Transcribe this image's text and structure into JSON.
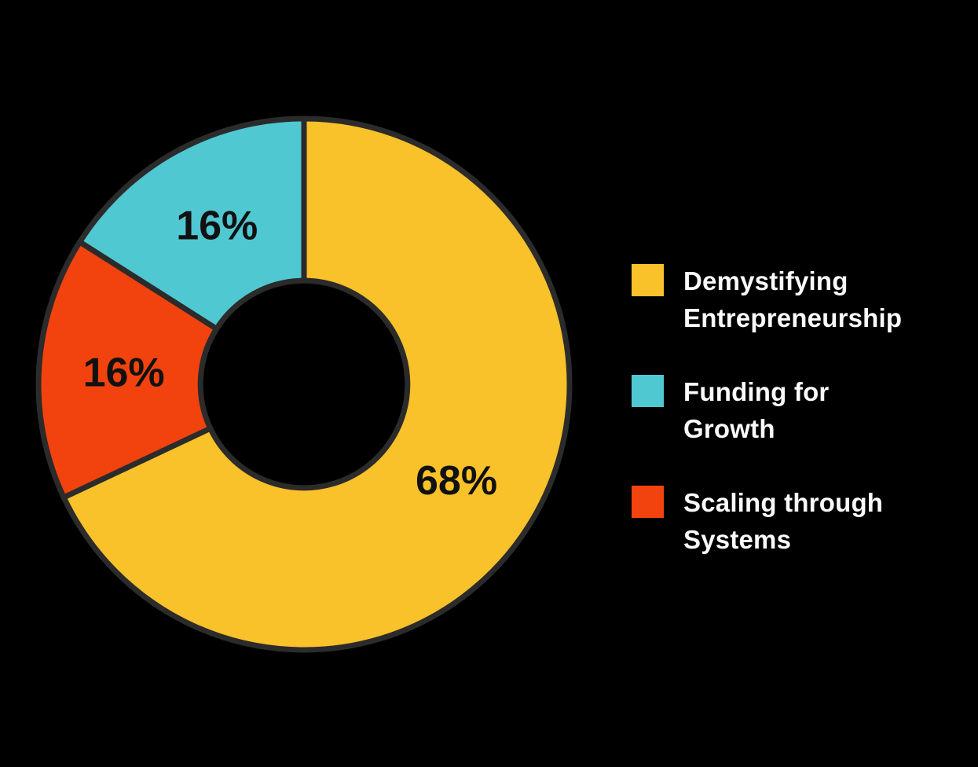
{
  "chart_data": {
    "type": "pie",
    "subtype": "donut",
    "title": "",
    "series": [
      {
        "key": "demystifying-entrepreneurship",
        "label": "Demystifying\nEntrepreneurship",
        "value": 68,
        "value_label": "68%",
        "color": "#F9C12A"
      },
      {
        "key": "funding-for-growth",
        "label": "Funding for\nGrowth",
        "value": 16,
        "value_label": "16%",
        "color": "#4FC8D2"
      },
      {
        "key": "scaling-through-systems",
        "label": "Scaling through\nSystems",
        "value": 16,
        "value_label": "16%",
        "color": "#F2430E"
      }
    ],
    "draw_order_clockwise_from_top": [
      0,
      2,
      1
    ],
    "start_angle_deg": 0,
    "direction": "clockwise",
    "donut_hole_ratio": 0.39,
    "legend_position": "right",
    "grid": false,
    "colors": {
      "background": "#000000",
      "slice_outline": "#2B2B2B",
      "slice_value_text": "#111111",
      "legend_text": "#FAFAFA"
    }
  }
}
